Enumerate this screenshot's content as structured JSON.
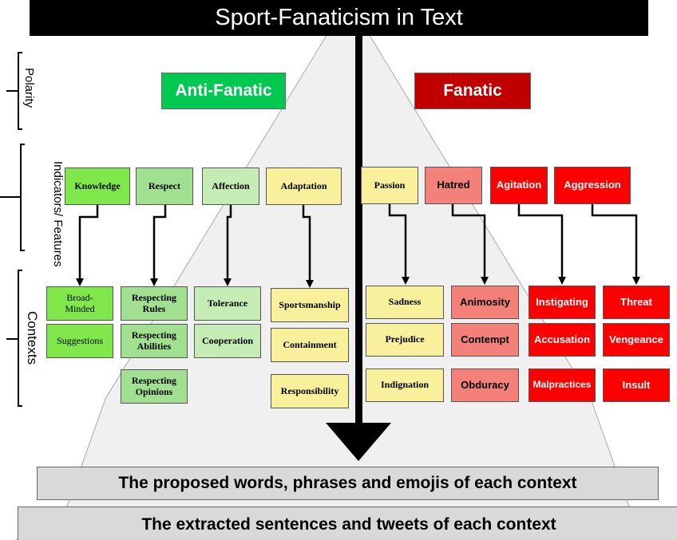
{
  "title": "Sport-Fanaticism in Text",
  "levels": {
    "polarity": "Polarity",
    "features": "Indicators/ Features",
    "contexts": "Contexts"
  },
  "polarity": {
    "anti": "Anti-Fanatic",
    "fanatic": "Fanatic"
  },
  "features": [
    "Knowledge",
    "Respect",
    "Affection",
    "Adaptation",
    "Passion",
    "Hatred",
    "Agitation",
    "Aggression"
  ],
  "contexts": {
    "knowledge": [
      "Broad-Minded",
      "Suggestions"
    ],
    "respect": [
      "Respecting Rules",
      "Respecting Abilities",
      "Respecting Opinions"
    ],
    "affection": [
      "Tolerance",
      "Cooperation"
    ],
    "adaptation": [
      "Sportsmanship",
      "Containment",
      "Responsibility"
    ],
    "passion": [
      "Sadness",
      "Prejudice",
      "Indignation"
    ],
    "hatred": [
      "Animosity",
      "Contempt",
      "Obduracy"
    ],
    "agitation": [
      "Instigating",
      "Accusation",
      "Malpractices"
    ],
    "aggression": [
      "Threat",
      "Vengeance",
      "Insult"
    ]
  },
  "bottom": {
    "proposed": "The proposed words, phrases and emojis of each context",
    "extracted": "The extracted sentences and tweets of each context"
  },
  "colors": {
    "anti": "#00c850",
    "fanatic": "#c00000",
    "red": "#ff0000",
    "salmon": "#f4807a",
    "yellow": "#f8f09a"
  }
}
